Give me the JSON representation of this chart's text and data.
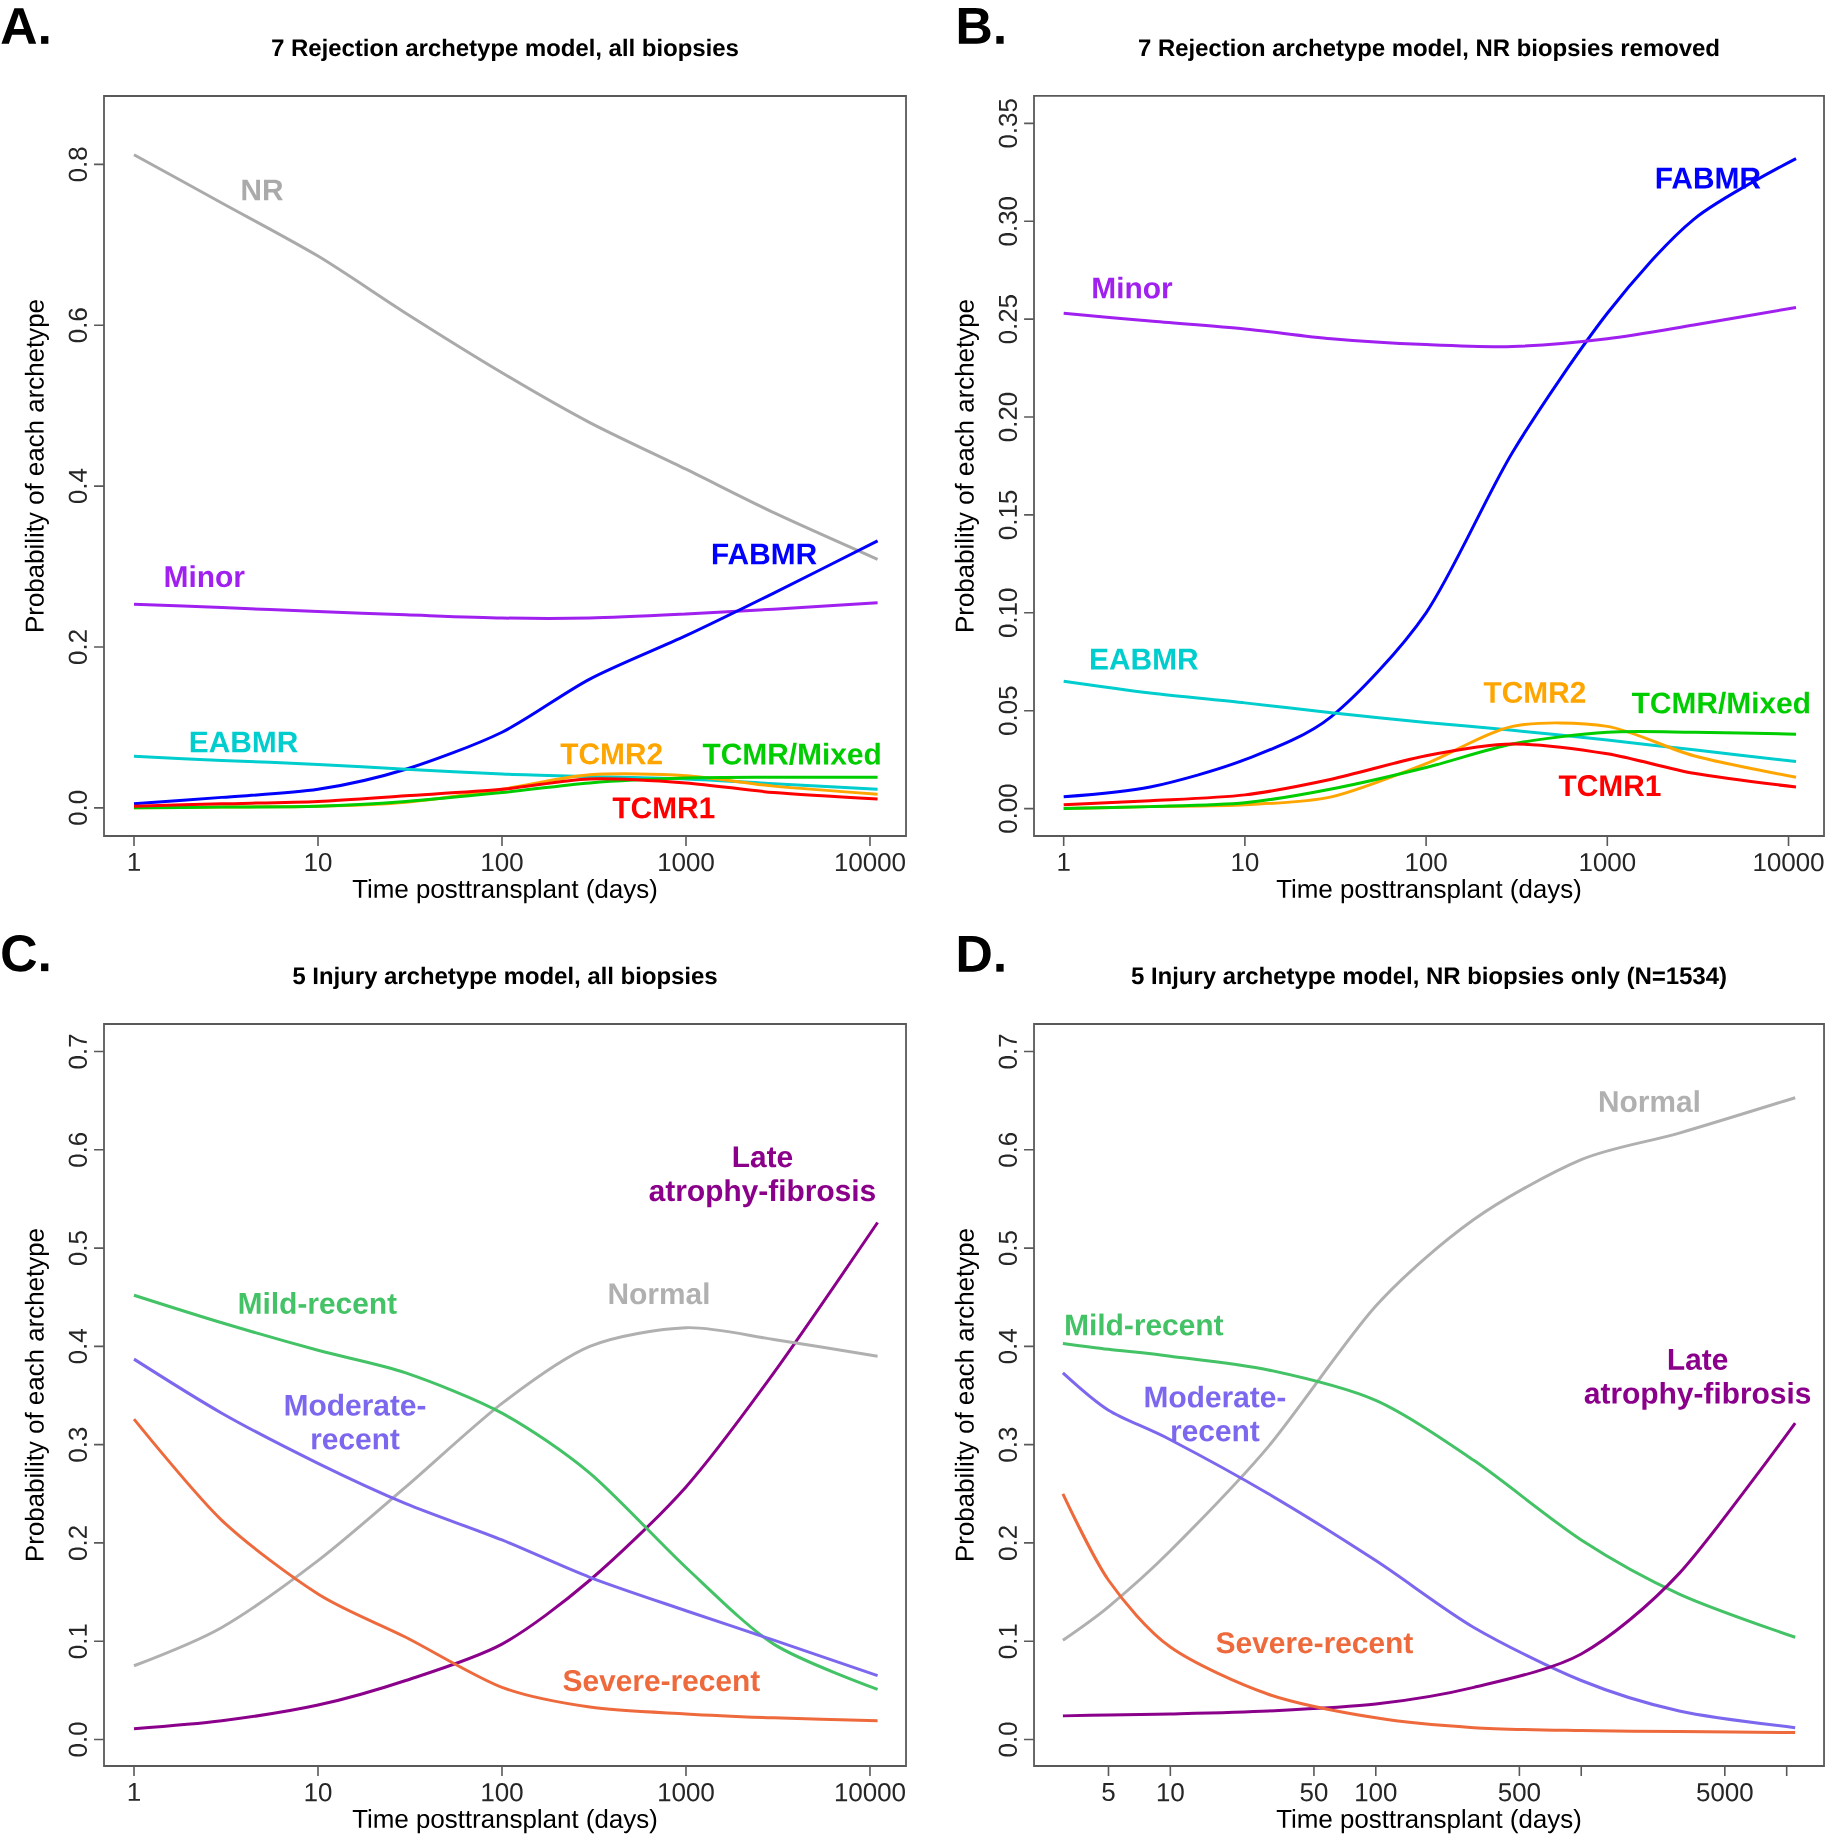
{
  "chart_data": [
    {
      "type": "line",
      "title": "7 Rejection archetype model, all biopsies",
      "annotations": [
        "A."
      ],
      "xlabel": "Time posttransplant (days)",
      "ylabel": "Probability of each archetype",
      "log": "x",
      "x": [
        1,
        3,
        10,
        30,
        100,
        300,
        1000,
        3000,
        11000
      ],
      "xlim": [
        0.687,
        15700
      ],
      "xticks": [
        1,
        10,
        100,
        1000,
        10000
      ],
      "ylim": [
        -0.035,
        0.885
      ],
      "yticks": [
        {
          "value": 0,
          "label": "0.0"
        },
        0.2,
        0.4,
        0.6,
        0.8
      ],
      "series": [
        {
          "name": "NR",
          "color": "#aaaaaa",
          "values": [
            0.812,
            0.752,
            0.686,
            0.615,
            0.541,
            0.479,
            0.421,
            0.367,
            0.309
          ]
        },
        {
          "name": "Minor",
          "color": "#a020f0",
          "values": [
            0.253,
            0.249,
            0.244,
            0.24,
            0.236,
            0.236,
            0.241,
            0.247,
            0.255
          ]
        },
        {
          "name": "FABMR",
          "color": "#0000ff",
          "values": [
            0.005,
            0.013,
            0.023,
            0.048,
            0.094,
            0.16,
            0.214,
            0.267,
            0.332
          ]
        },
        {
          "name": "EABMR",
          "color": "#00cdcd",
          "values": [
            0.064,
            0.059,
            0.054,
            0.048,
            0.042,
            0.039,
            0.036,
            0.03,
            0.023
          ]
        },
        {
          "name": "TCMR2",
          "color": "#ffa500",
          "values": [
            0.0,
            0.001,
            0.002,
            0.007,
            0.023,
            0.041,
            0.04,
            0.027,
            0.017
          ]
        },
        {
          "name": "TCMR/Mixed",
          "color": "#00cd00",
          "values": [
            0.0,
            0.001,
            0.002,
            0.008,
            0.019,
            0.031,
            0.037,
            0.038,
            0.038
          ]
        },
        {
          "name": "TCMR1",
          "color": "#ff0000",
          "values": [
            0.002,
            0.005,
            0.008,
            0.015,
            0.023,
            0.036,
            0.031,
            0.019,
            0.011
          ]
        }
      ]
    },
    {
      "type": "line",
      "title": "7 Rejection archetype model, NR biopsies removed",
      "annotations": [
        "B."
      ],
      "xlabel": "Time posttransplant (days)",
      "ylabel": "Probability of each archetype",
      "log": "x",
      "x": [
        1,
        3,
        10,
        30,
        100,
        300,
        1000,
        3000,
        11000
      ],
      "xlim": [
        0.686,
        15700
      ],
      "xticks": [
        1,
        10,
        100,
        1000,
        10000
      ],
      "ylim": [
        -0.014,
        0.364
      ],
      "yticks": [
        {
          "value": 0,
          "label": "0.00"
        },
        0.05,
        {
          "value": 0.1,
          "label": "0.10"
        },
        0.15,
        {
          "value": 0.2,
          "label": "0.20"
        },
        0.25,
        {
          "value": 0.3,
          "label": "0.30"
        },
        0.35
      ],
      "series": [
        {
          "name": "FABMR",
          "color": "#0000ff",
          "values": [
            0.006,
            0.011,
            0.025,
            0.047,
            0.1,
            0.182,
            0.253,
            0.301,
            0.332
          ]
        },
        {
          "name": "Minor",
          "color": "#a020f0",
          "values": [
            0.253,
            0.249,
            0.245,
            0.24,
            0.237,
            0.236,
            0.24,
            0.247,
            0.256
          ]
        },
        {
          "name": "EABMR",
          "color": "#00cdcd",
          "values": [
            0.065,
            0.059,
            0.054,
            0.049,
            0.044,
            0.04,
            0.035,
            0.03,
            0.024
          ]
        },
        {
          "name": "TCMR2",
          "color": "#ffa500",
          "values": [
            0.0,
            0.001,
            0.002,
            0.006,
            0.023,
            0.042,
            0.042,
            0.027,
            0.016
          ]
        },
        {
          "name": "TCMR/Mixed",
          "color": "#00cd00",
          "values": [
            0.0,
            0.001,
            0.003,
            0.01,
            0.021,
            0.033,
            0.039,
            0.039,
            0.038
          ]
        },
        {
          "name": "TCMR1",
          "color": "#ff0000",
          "values": [
            0.002,
            0.004,
            0.007,
            0.015,
            0.027,
            0.033,
            0.028,
            0.018,
            0.011
          ]
        }
      ]
    },
    {
      "type": "line",
      "title": "5 Injury archetype model, all biopsies",
      "annotations": [
        "C."
      ],
      "xlabel": "Time posttransplant (days)",
      "ylabel": "Probability of each archetype",
      "log": "x",
      "x": [
        1,
        3,
        10,
        30,
        100,
        300,
        1000,
        3000,
        11000
      ],
      "xlim": [
        0.687,
        15700
      ],
      "xticks": [
        1,
        10,
        100,
        1000,
        10000
      ],
      "ylim": [
        -0.027,
        0.728
      ],
      "yticks": [
        {
          "value": 0,
          "label": "0.0"
        },
        0.1,
        0.2,
        0.3,
        0.4,
        0.5,
        0.6,
        0.7
      ],
      "series": [
        {
          "name": "Late atrophy-fibrosis",
          "color": "#8b008b",
          "values": [
            0.011,
            0.019,
            0.035,
            0.06,
            0.097,
            0.162,
            0.257,
            0.373,
            0.526
          ]
        },
        {
          "name": "Normal",
          "color": "#b0b0b0",
          "values": [
            0.075,
            0.114,
            0.182,
            0.257,
            0.342,
            0.4,
            0.419,
            0.407,
            0.39
          ]
        },
        {
          "name": "Mild-recent",
          "color": "#43c266",
          "values": [
            0.452,
            0.424,
            0.396,
            0.373,
            0.332,
            0.271,
            0.175,
            0.097,
            0.051
          ]
        },
        {
          "name": "Moderate-recent",
          "color": "#7b68ee",
          "values": [
            0.387,
            0.332,
            0.281,
            0.24,
            0.203,
            0.165,
            0.131,
            0.101,
            0.065
          ]
        },
        {
          "name": "Severe-recent",
          "color": "#ee6a3c",
          "values": [
            0.326,
            0.223,
            0.148,
            0.104,
            0.053,
            0.033,
            0.026,
            0.022,
            0.019
          ]
        }
      ]
    },
    {
      "type": "line",
      "title": "5 Injury archetype model, NR biopsies only (N=1534)",
      "annotations": [
        "D."
      ],
      "xlabel": "Time posttransplant (days)",
      "ylabel": "Probability of each archetype",
      "log": "x",
      "x": [
        3,
        5,
        10,
        30,
        100,
        300,
        1000,
        3000,
        11000
      ],
      "xlim": [
        2.17,
        15200
      ],
      "xticks": [
        5,
        10,
        50,
        100,
        500,
        {
          "value": 1000,
          "label": null
        },
        5000,
        {
          "value": 10000,
          "label": null
        }
      ],
      "ylim": [
        -0.027,
        0.728
      ],
      "yticks": [
        {
          "value": 0,
          "label": "0.0"
        },
        0.1,
        0.2,
        0.3,
        0.4,
        0.5,
        0.6,
        0.7
      ],
      "series": [
        {
          "name": "Normal",
          "color": "#b0b0b0",
          "values": [
            0.101,
            0.135,
            0.192,
            0.298,
            0.441,
            0.529,
            0.59,
            0.617,
            0.653
          ]
        },
        {
          "name": "Mild-recent",
          "color": "#43c266",
          "values": [
            0.403,
            0.397,
            0.39,
            0.376,
            0.345,
            0.284,
            0.203,
            0.148,
            0.104
          ]
        },
        {
          "name": "Moderate-recent",
          "color": "#7b68ee",
          "values": [
            0.373,
            0.335,
            0.305,
            0.25,
            0.182,
            0.114,
            0.06,
            0.029,
            0.012
          ]
        },
        {
          "name": "Late atrophy-fibrosis",
          "color": "#8b008b",
          "values": [
            0.024,
            0.025,
            0.026,
            0.029,
            0.036,
            0.053,
            0.087,
            0.169,
            0.322
          ]
        },
        {
          "name": "Severe-recent",
          "color": "#ee6a3c",
          "values": [
            0.25,
            0.162,
            0.094,
            0.046,
            0.022,
            0.012,
            0.009,
            0.008,
            0.007
          ]
        }
      ]
    }
  ]
}
